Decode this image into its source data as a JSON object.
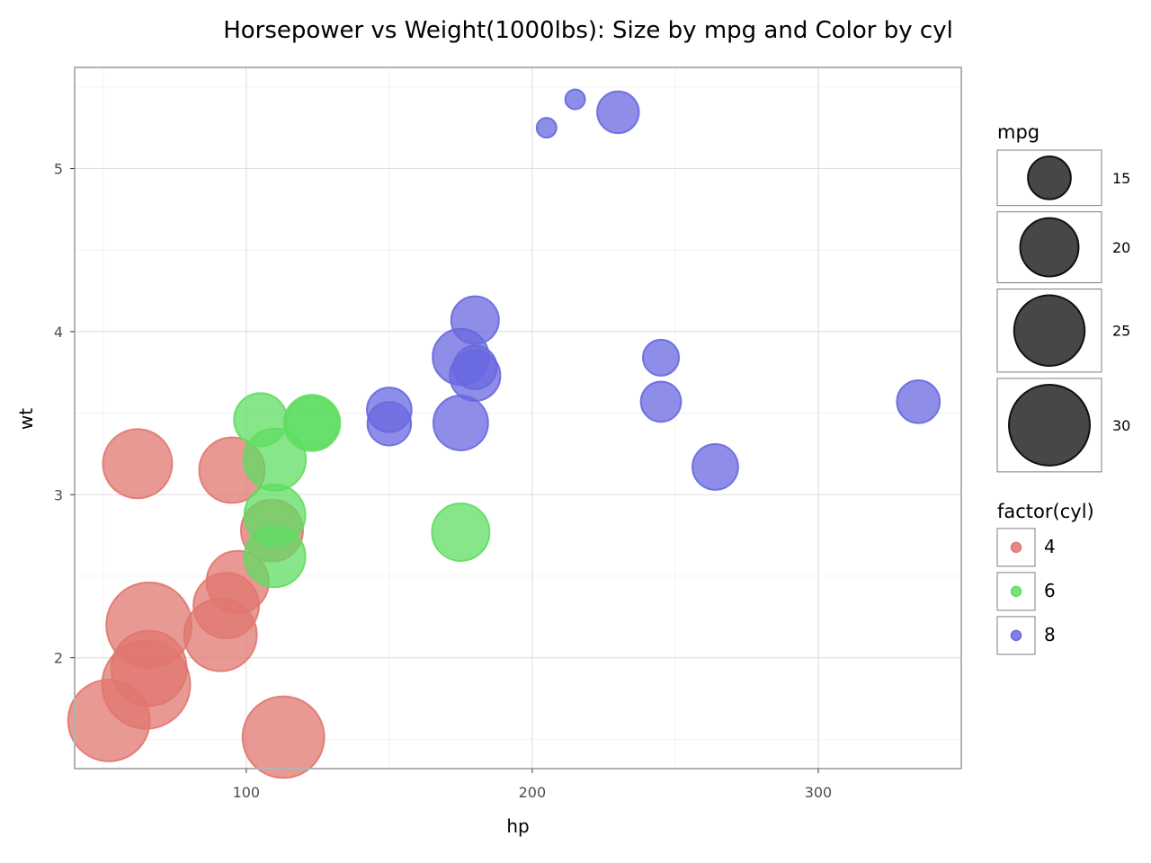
{
  "chart_data": {
    "type": "scatter",
    "title": "Horsepower vs Weight(1000lbs): Size by mpg and Color by cyl",
    "xlabel": "hp",
    "ylabel": "wt",
    "xlim": [
      40,
      350
    ],
    "ylim": [
      1.32,
      5.62
    ],
    "x_ticks": [
      100,
      200,
      300
    ],
    "y_ticks": [
      2,
      3,
      4,
      5
    ],
    "x_minor_ticks": [
      50,
      150,
      250,
      350
    ],
    "y_minor_ticks": [
      1.5,
      2.5,
      3.5,
      4.5,
      5.5
    ],
    "grid": true,
    "legend_position": "right",
    "mpg_range": [
      10.4,
      33.9
    ],
    "series": [
      {
        "name": "4",
        "color": "#e0776f",
        "points": [
          {
            "hp": 93,
            "wt": 2.32,
            "mpg": 22.8
          },
          {
            "hp": 62,
            "wt": 3.19,
            "mpg": 24.4
          },
          {
            "hp": 95,
            "wt": 3.15,
            "mpg": 22.8
          },
          {
            "hp": 66,
            "wt": 2.2,
            "mpg": 32.4
          },
          {
            "hp": 52,
            "wt": 1.615,
            "mpg": 30.4
          },
          {
            "hp": 65,
            "wt": 1.835,
            "mpg": 33.9
          },
          {
            "hp": 97,
            "wt": 2.465,
            "mpg": 21.5
          },
          {
            "hp": 66,
            "wt": 1.935,
            "mpg": 27.3
          },
          {
            "hp": 91,
            "wt": 2.14,
            "mpg": 26.0
          },
          {
            "hp": 113,
            "wt": 1.513,
            "mpg": 30.4
          },
          {
            "hp": 109,
            "wt": 2.78,
            "mpg": 21.4
          }
        ]
      },
      {
        "name": "6",
        "color": "#5fdd62",
        "points": [
          {
            "hp": 110,
            "wt": 2.62,
            "mpg": 21.0
          },
          {
            "hp": 110,
            "wt": 2.875,
            "mpg": 21.0
          },
          {
            "hp": 110,
            "wt": 3.215,
            "mpg": 21.4
          },
          {
            "hp": 105,
            "wt": 3.46,
            "mpg": 18.1
          },
          {
            "hp": 123,
            "wt": 3.44,
            "mpg": 19.2
          },
          {
            "hp": 123,
            "wt": 3.44,
            "mpg": 17.8
          },
          {
            "hp": 175,
            "wt": 2.77,
            "mpg": 19.7
          }
        ]
      },
      {
        "name": "8",
        "color": "#6868e0",
        "points": [
          {
            "hp": 175,
            "wt": 3.44,
            "mpg": 18.7
          },
          {
            "hp": 245,
            "wt": 3.57,
            "mpg": 14.3
          },
          {
            "hp": 180,
            "wt": 4.07,
            "mpg": 16.4
          },
          {
            "hp": 180,
            "wt": 3.73,
            "mpg": 17.3
          },
          {
            "hp": 180,
            "wt": 3.78,
            "mpg": 15.2
          },
          {
            "hp": 205,
            "wt": 5.25,
            "mpg": 10.4
          },
          {
            "hp": 215,
            "wt": 5.424,
            "mpg": 10.4
          },
          {
            "hp": 230,
            "wt": 5.345,
            "mpg": 14.7
          },
          {
            "hp": 150,
            "wt": 3.52,
            "mpg": 15.5
          },
          {
            "hp": 150,
            "wt": 3.435,
            "mpg": 15.2
          },
          {
            "hp": 245,
            "wt": 3.84,
            "mpg": 13.3
          },
          {
            "hp": 175,
            "wt": 3.845,
            "mpg": 19.2
          },
          {
            "hp": 264,
            "wt": 3.17,
            "mpg": 15.8
          },
          {
            "hp": 335,
            "wt": 3.57,
            "mpg": 15.0
          }
        ]
      }
    ],
    "legends": {
      "size": {
        "title": "mpg",
        "values": [
          15,
          20,
          25,
          30
        ],
        "labels": [
          "15",
          "20",
          "25",
          "30"
        ],
        "color": "#333333"
      },
      "color": {
        "title": "factor(cyl)",
        "labels": [
          "4",
          "6",
          "8"
        ],
        "colors": [
          "#e0776f",
          "#5fdd62",
          "#6868e0"
        ]
      }
    }
  }
}
